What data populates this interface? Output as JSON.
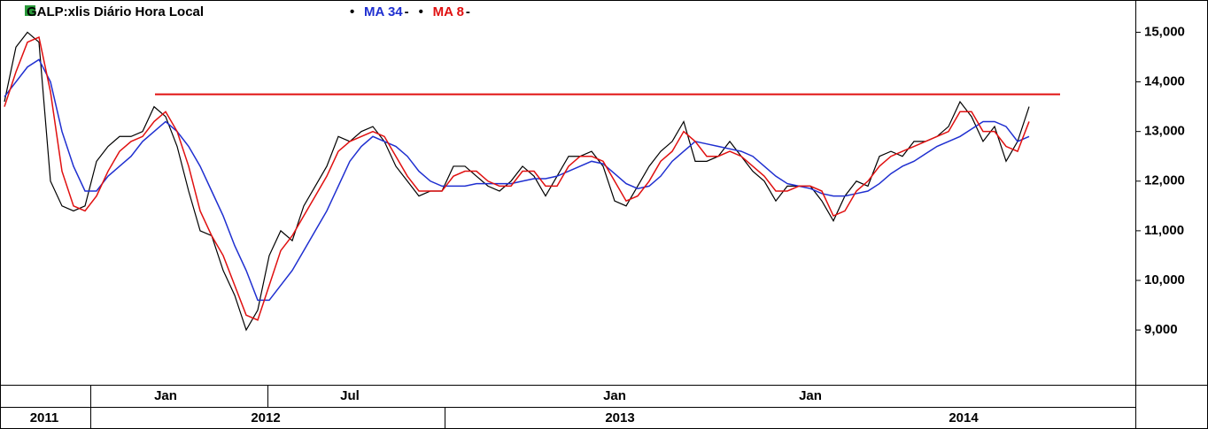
{
  "chart_data": {
    "type": "line",
    "title": "GALP:xlis Diário Hora Local",
    "categories": [
      null,
      null,
      null,
      null,
      null,
      null,
      null,
      null,
      null,
      null,
      null,
      null,
      null,
      null,
      "Jan",
      null,
      null,
      null,
      null,
      null,
      null,
      null,
      null,
      null,
      null,
      null,
      null,
      null,
      null,
      null,
      "Jul",
      null,
      null,
      null,
      null,
      null,
      null,
      null,
      null,
      null,
      null,
      null,
      null,
      null,
      null,
      null,
      null,
      null,
      null,
      null,
      null,
      null,
      null,
      "Jan",
      null,
      null,
      null,
      null,
      null,
      null,
      null,
      null,
      null,
      null,
      null,
      null,
      null,
      null,
      null,
      null,
      "Jan",
      null,
      null,
      null,
      null,
      null,
      null,
      null,
      null,
      null,
      null,
      null,
      null,
      null,
      null,
      null,
      null,
      null,
      null,
      null
    ],
    "year_labels": [
      "2011",
      "2012",
      "2013",
      "2014"
    ],
    "series": [
      {
        "color": "#000000",
        "values": [
          13600,
          14700,
          15000,
          14800,
          12000,
          11500,
          11400,
          11500,
          12400,
          12700,
          12900,
          12900,
          13000,
          13500,
          13300,
          12700,
          11800,
          11000,
          10900,
          10200,
          9700,
          9000,
          9400,
          10500,
          11000,
          10800,
          11500,
          11900,
          12300,
          12900,
          12800,
          13000,
          13100,
          12800,
          12300,
          12000,
          11700,
          11800,
          11800,
          12300,
          12300,
          12100,
          11900,
          11800,
          12000,
          12300,
          12100,
          11700,
          12100,
          12500,
          12500,
          12600,
          12300,
          11600,
          11500,
          11900,
          12300,
          12600,
          12800,
          13200,
          12400,
          12400,
          12500,
          12800,
          12500,
          12200,
          12000,
          11600,
          11900,
          11900,
          11900,
          11600,
          11200,
          11700,
          12000,
          11900,
          12500,
          12600,
          12500,
          12800,
          12800,
          12900,
          13100,
          13600,
          13300,
          12800,
          13100,
          12400,
          12800,
          13500
        ]
      },
      {
        "name": "MA 34",
        "color": "#1f2fd0",
        "values": [
          13700,
          14000,
          14300,
          14450,
          14000,
          13000,
          12300,
          11800,
          11800,
          12100,
          12300,
          12500,
          12800,
          13000,
          13200,
          13000,
          12700,
          12300,
          11800,
          11300,
          10700,
          10200,
          9600,
          9600,
          9900,
          10200,
          10600,
          11000,
          11400,
          11900,
          12400,
          12700,
          12900,
          12800,
          12700,
          12500,
          12200,
          12000,
          11900,
          11900,
          11900,
          11950,
          11950,
          11950,
          11950,
          12000,
          12050,
          12050,
          12100,
          12200,
          12300,
          12400,
          12350,
          12150,
          11950,
          11850,
          11900,
          12100,
          12400,
          12600,
          12800,
          12750,
          12700,
          12650,
          12600,
          12500,
          12300,
          12100,
          11950,
          11900,
          11850,
          11750,
          11700,
          11700,
          11750,
          11800,
          11950,
          12150,
          12300,
          12400,
          12550,
          12700,
          12800,
          12900,
          13050,
          13200,
          13200,
          13100,
          12800,
          12900
        ]
      },
      {
        "name": "MA 8",
        "color": "#e01010",
        "values": [
          13500,
          14200,
          14800,
          14900,
          13800,
          12200,
          11500,
          11400,
          11700,
          12200,
          12600,
          12800,
          12900,
          13200,
          13400,
          13000,
          12300,
          11400,
          10900,
          10500,
          9900,
          9300,
          9200,
          9900,
          10600,
          10900,
          11300,
          11700,
          12100,
          12600,
          12800,
          12900,
          13000,
          12900,
          12500,
          12100,
          11800,
          11800,
          11800,
          12100,
          12200,
          12200,
          12000,
          11900,
          11900,
          12200,
          12200,
          11900,
          11900,
          12300,
          12500,
          12500,
          12400,
          12000,
          11600,
          11700,
          12000,
          12400,
          12600,
          13000,
          12800,
          12500,
          12500,
          12600,
          12500,
          12300,
          12100,
          11800,
          11800,
          11900,
          11900,
          11800,
          11300,
          11400,
          11800,
          12000,
          12300,
          12500,
          12600,
          12700,
          12800,
          12900,
          13000,
          13400,
          13400,
          13000,
          13000,
          12700,
          12600,
          13200
        ]
      }
    ],
    "reference_line": {
      "value": 13750,
      "color": "#e01010"
    },
    "ylim": [
      7950,
      15650
    ],
    "yticks": [
      {
        "value": 9000,
        "label": "9,000"
      },
      {
        "value": 10000,
        "label": "10,000"
      },
      {
        "value": 11000,
        "label": "11,000"
      },
      {
        "value": 12000,
        "label": "12,000"
      },
      {
        "value": 13000,
        "label": "13,000"
      },
      {
        "value": 14000,
        "label": "14,000"
      },
      {
        "value": 15000,
        "label": "15,000"
      }
    ]
  }
}
